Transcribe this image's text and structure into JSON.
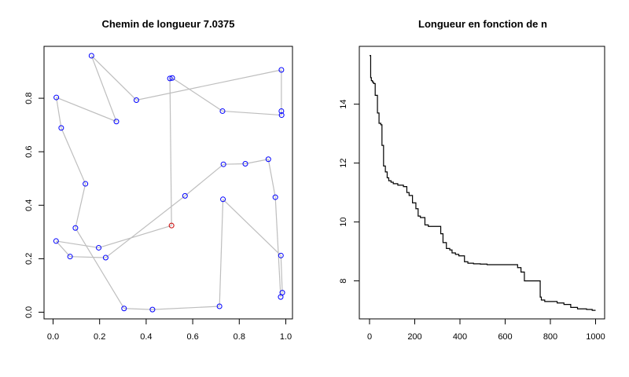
{
  "chart_data": [
    {
      "type": "scatter",
      "title": "Chemin de longueur 7.0375",
      "xlim": [
        0,
        1
      ],
      "ylim": [
        0,
        0.96
      ],
      "x_ticks": [
        "0.0",
        "0.2",
        "0.4",
        "0.6",
        "0.8",
        "1.0"
      ],
      "y_ticks": [
        "0.0",
        "0.2",
        "0.4",
        "0.6",
        "0.8"
      ],
      "grid": false,
      "path_color": "#bebebe",
      "point_color": "#0000ff",
      "start_color": "#cc0000",
      "path": [
        [
          0.509,
          0.324
        ],
        [
          0.196,
          0.241
        ],
        [
          0.013,
          0.266
        ],
        [
          0.073,
          0.208
        ],
        [
          0.226,
          0.204
        ],
        [
          0.567,
          0.435
        ],
        [
          0.732,
          0.553
        ],
        [
          0.826,
          0.555
        ],
        [
          0.925,
          0.572
        ],
        [
          0.955,
          0.43
        ],
        [
          0.978,
          0.057
        ],
        [
          0.985,
          0.073
        ],
        [
          0.979,
          0.212
        ],
        [
          0.73,
          0.422
        ],
        [
          0.715,
          0.022
        ],
        [
          0.427,
          0.01
        ],
        [
          0.305,
          0.014
        ],
        [
          0.096,
          0.315
        ],
        [
          0.139,
          0.48
        ],
        [
          0.035,
          0.689
        ],
        [
          0.014,
          0.803
        ],
        [
          0.272,
          0.713
        ],
        [
          0.165,
          0.959
        ],
        [
          0.358,
          0.793
        ],
        [
          0.981,
          0.906
        ],
        [
          0.981,
          0.752
        ],
        [
          0.982,
          0.737
        ],
        [
          0.728,
          0.752
        ],
        [
          0.512,
          0.876
        ],
        [
          0.502,
          0.874
        ],
        [
          0.509,
          0.324
        ]
      ]
    },
    {
      "type": "line",
      "title": "Longueur en fonction de n",
      "xlim": [
        0,
        1000
      ],
      "ylim": [
        6.95,
        15.65
      ],
      "x_ticks": [
        "0",
        "200",
        "400",
        "600",
        "800",
        "1000"
      ],
      "y_ticks": [
        "8",
        "10",
        "12",
        "14"
      ],
      "grid": false,
      "line_color": "#000000",
      "x": [
        0,
        5,
        8,
        13,
        18,
        25,
        35,
        42,
        50,
        55,
        62,
        70,
        78,
        85,
        95,
        105,
        125,
        150,
        165,
        175,
        190,
        205,
        215,
        225,
        245,
        260,
        290,
        315,
        325,
        340,
        355,
        365,
        380,
        395,
        420,
        435,
        440,
        460,
        490,
        520,
        560,
        600,
        640,
        655,
        670,
        685,
        720,
        755,
        760,
        775,
        830,
        860,
        890,
        920,
        960,
        985,
        1000
      ],
      "y": [
        15.65,
        14.9,
        14.8,
        14.75,
        14.7,
        14.3,
        13.7,
        13.35,
        13.3,
        12.6,
        11.9,
        11.7,
        11.5,
        11.4,
        11.35,
        11.3,
        11.25,
        11.2,
        11.0,
        10.9,
        10.65,
        10.45,
        10.2,
        10.15,
        9.9,
        9.85,
        9.85,
        9.6,
        9.3,
        9.1,
        9.05,
        8.95,
        8.9,
        8.85,
        8.65,
        8.6,
        8.6,
        8.58,
        8.57,
        8.55,
        8.55,
        8.55,
        8.55,
        8.45,
        8.3,
        8.0,
        8.0,
        7.45,
        7.35,
        7.3,
        7.25,
        7.2,
        7.1,
        7.05,
        7.03,
        7.0,
        7.0
      ]
    }
  ]
}
